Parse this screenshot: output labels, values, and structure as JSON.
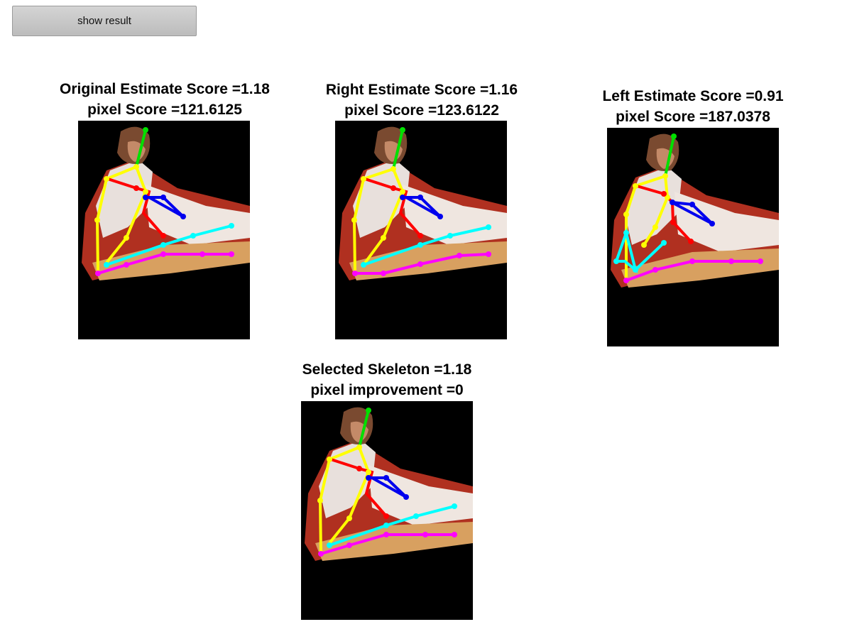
{
  "toolbar": {
    "show_result_label": "show result"
  },
  "panels": [
    {
      "title": "Original Estimate Score =1.18",
      "subtitle": "pixel Score =121.6125"
    },
    {
      "title": "Right Estimate Score =1.16",
      "subtitle": "pixel Score =123.6122"
    },
    {
      "title": "Left Estimate Score =0.91",
      "subtitle": "pixel Score =187.0378"
    },
    {
      "title": "Selected Skeleton =1.18",
      "subtitle": "pixel improvement =0"
    }
  ],
  "colors": {
    "head": "#00e000",
    "torso": "#ffff00",
    "arm_upper": "#ff0000",
    "arm_lower": "#0000ee",
    "leg_upper": "#00ffff",
    "leg_lower": "#ff00ff"
  }
}
